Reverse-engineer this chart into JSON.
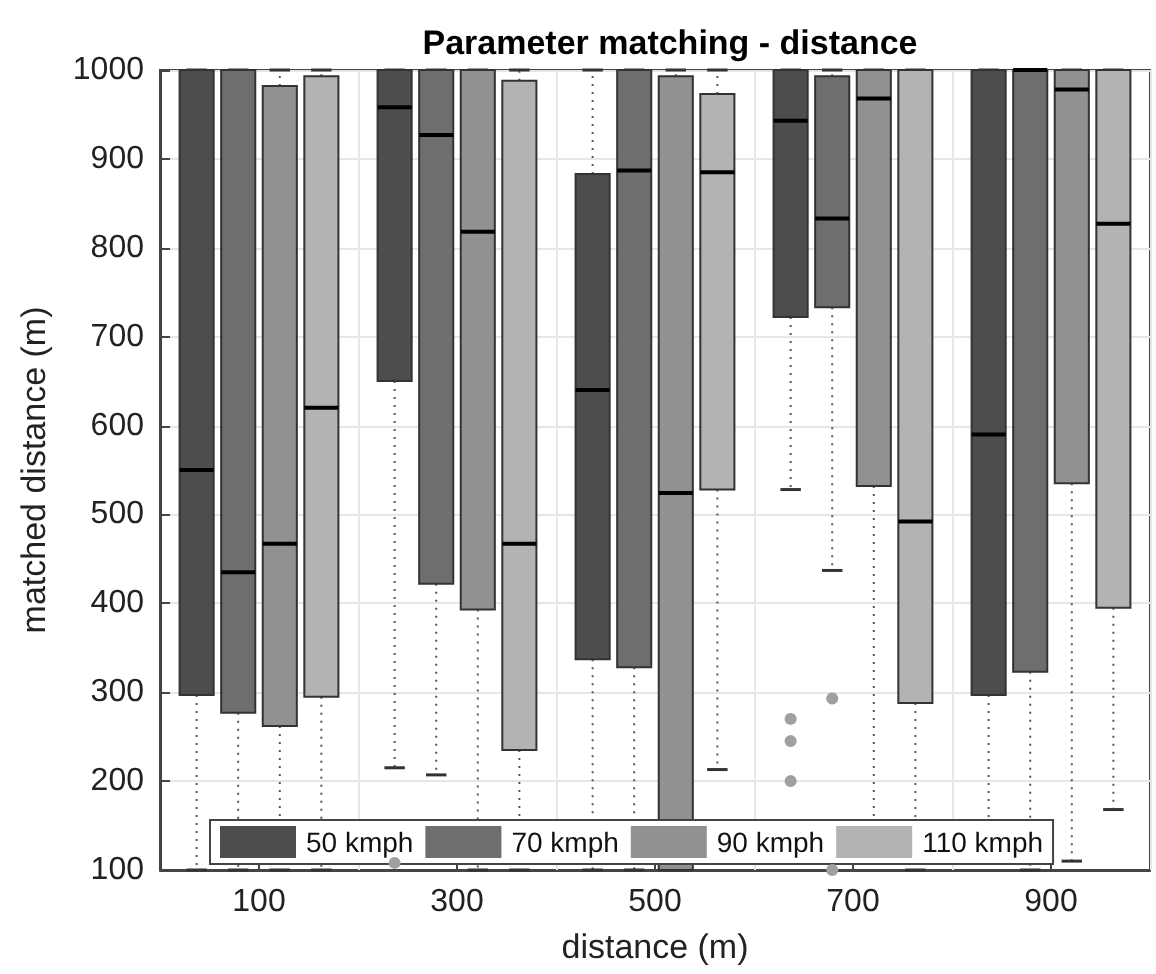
{
  "chart_data": {
    "type": "box",
    "title": "Parameter matching - distance",
    "xlabel": "distance (m)",
    "ylabel": "matched distance (m)",
    "categories": [
      "100",
      "300",
      "500",
      "700",
      "900"
    ],
    "ylim": [
      100,
      1000
    ],
    "yticks": [
      100,
      200,
      300,
      400,
      500,
      600,
      700,
      800,
      900,
      1000
    ],
    "grid": true,
    "legend": "bottom",
    "series": [
      {
        "name": "50 kmph",
        "color": "#4d4d4d",
        "boxes": [
          {
            "low": 100,
            "q1": 297,
            "median": 550,
            "q3": 1000,
            "high": 1000
          },
          {
            "low": 215,
            "q1": 650,
            "median": 958,
            "q3": 1000,
            "high": 1000,
            "outliers": [
              108
            ]
          },
          {
            "low": 100,
            "q1": 337,
            "median": 640,
            "q3": 883,
            "high": 1000
          },
          {
            "low": 528,
            "q1": 722,
            "median": 943,
            "q3": 1000,
            "high": 1000,
            "outliers": [
              270,
              245,
              200
            ]
          },
          {
            "low": 117,
            "q1": 297,
            "median": 590,
            "q3": 1000,
            "high": 1000
          }
        ]
      },
      {
        "name": "70 kmph",
        "color": "#6e6e6e",
        "boxes": [
          {
            "low": 100,
            "q1": 277,
            "median": 435,
            "q3": 1000,
            "high": 1000
          },
          {
            "low": 207,
            "q1": 422,
            "median": 927,
            "q3": 1000,
            "high": 1000
          },
          {
            "low": 100,
            "q1": 328,
            "median": 887,
            "q3": 1000,
            "high": 1000
          },
          {
            "low": 437,
            "q1": 733,
            "median": 833,
            "q3": 993,
            "high": 1000,
            "outliers": [
              293,
              100
            ]
          },
          {
            "low": 100,
            "q1": 323,
            "median": 1000,
            "q3": 1000,
            "high": 1000
          }
        ]
      },
      {
        "name": "90 kmph",
        "color": "#919191",
        "boxes": [
          {
            "low": 100,
            "q1": 262,
            "median": 467,
            "q3": 982,
            "high": 1000
          },
          {
            "low": 100,
            "q1": 393,
            "median": 818,
            "q3": 1000,
            "high": 1000
          },
          {
            "low": 100,
            "q1": 100,
            "median": 524,
            "q3": 993,
            "high": 1000
          },
          {
            "low": 117,
            "q1": 532,
            "median": 968,
            "q3": 1000,
            "high": 1000
          },
          {
            "low": 110,
            "q1": 535,
            "median": 978,
            "q3": 1000,
            "high": 1000
          }
        ]
      },
      {
        "name": "110 kmph",
        "color": "#b3b3b3",
        "boxes": [
          {
            "low": 100,
            "q1": 295,
            "median": 620,
            "q3": 993,
            "high": 1000
          },
          {
            "low": 100,
            "q1": 235,
            "median": 467,
            "q3": 988,
            "high": 1000
          },
          {
            "low": 213,
            "q1": 528,
            "median": 885,
            "q3": 973,
            "high": 1000
          },
          {
            "low": 100,
            "q1": 288,
            "median": 492,
            "q3": 1000,
            "high": 1000
          },
          {
            "low": 168,
            "q1": 395,
            "median": 827,
            "q3": 1000,
            "high": 1000
          }
        ]
      }
    ]
  }
}
